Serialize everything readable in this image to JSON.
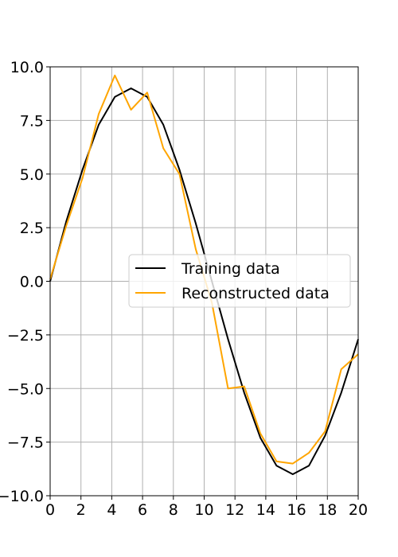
{
  "chart_data": {
    "type": "line",
    "title": "",
    "xlabel": "",
    "ylabel": "",
    "xlim": [
      0,
      20
    ],
    "ylim": [
      -10,
      10
    ],
    "grid": true,
    "legend_position": "center-right",
    "x_ticks": [
      0,
      2,
      4,
      6,
      8,
      10,
      12,
      14,
      16,
      18,
      20
    ],
    "x_tick_labels": [
      "0",
      "2",
      "4",
      "6",
      "8",
      "10",
      "12",
      "14",
      "16",
      "18",
      "20"
    ],
    "y_ticks": [
      10,
      7.5,
      5,
      2.5,
      0,
      -2.5,
      -5,
      -7.5,
      -10
    ],
    "y_tick_labels": [
      "10.0",
      "7.5",
      "5.0",
      "2.5",
      "0.0",
      "−2.5",
      "−5.0",
      "−7.5",
      "−10.0"
    ],
    "series": [
      {
        "name": "Training data",
        "color": "#000000",
        "x": [
          0,
          1.05,
          2.1,
          3.15,
          4.2,
          5.25,
          6.3,
          7.35,
          8.4,
          9.45,
          10.5,
          11.55,
          12.6,
          13.65,
          14.7,
          15.75,
          16.8,
          17.85,
          18.9,
          20
        ],
        "y": [
          0,
          2.8,
          5.2,
          7.3,
          8.6,
          9.0,
          8.6,
          7.3,
          5.2,
          2.7,
          0,
          -2.7,
          -5.2,
          -7.3,
          -8.6,
          -9.0,
          -8.6,
          -7.2,
          -5.2,
          -2.7
        ]
      },
      {
        "name": "Reconstructed data",
        "color": "#ffa500",
        "x": [
          0,
          1.05,
          2.1,
          3.15,
          4.2,
          5.25,
          6.3,
          7.35,
          8.4,
          9.45,
          10.5,
          11.55,
          12.6,
          13.65,
          14.7,
          15.75,
          16.8,
          17.85,
          18.9,
          20
        ],
        "y": [
          0.1,
          2.6,
          4.8,
          7.8,
          9.6,
          8.0,
          8.8,
          6.2,
          5.0,
          1.5,
          -1.0,
          -5.0,
          -4.9,
          -7.1,
          -8.4,
          -8.5,
          -8.0,
          -7.0,
          -4.1,
          -3.4
        ]
      }
    ]
  }
}
